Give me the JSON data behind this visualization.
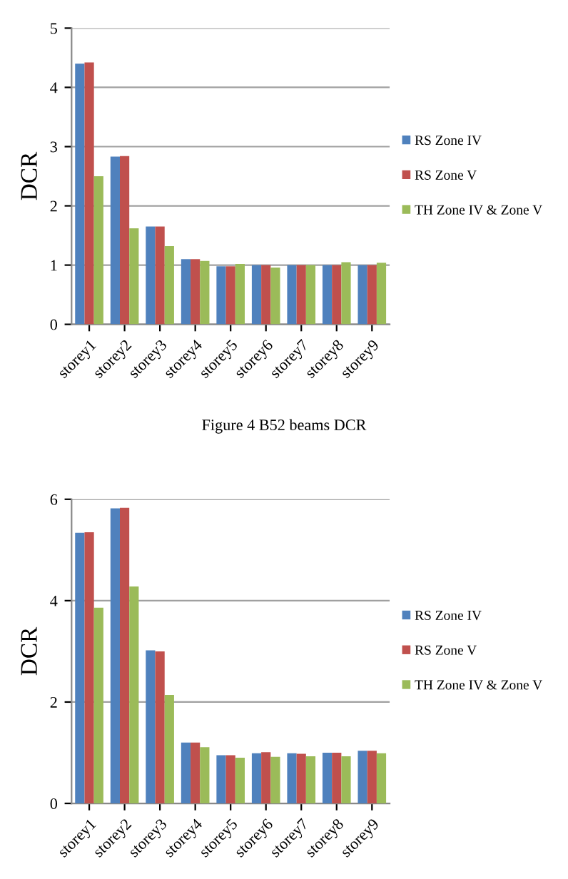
{
  "chart_data": [
    {
      "type": "bar",
      "ylabel": "DCR",
      "annotations": [
        "Figure 4 B52 beams DCR"
      ],
      "categories": [
        "storey1",
        "storey2",
        "storey3",
        "storey4",
        "storey5",
        "storey6",
        "storey7",
        "storey8",
        "storey9"
      ],
      "series": [
        {
          "name": "RS Zone IV",
          "color": "#4f81bd",
          "values": [
            4.4,
            2.83,
            1.65,
            1.1,
            0.98,
            1.0,
            1.0,
            1.0,
            1.0
          ]
        },
        {
          "name": "RS Zone V",
          "color": "#c0504d",
          "values": [
            4.42,
            2.84,
            1.65,
            1.1,
            0.98,
            1.0,
            1.0,
            1.0,
            1.0
          ]
        },
        {
          "name": "TH Zone IV & Zone V",
          "color": "#9bbb59",
          "values": [
            2.5,
            1.62,
            1.32,
            1.07,
            1.02,
            0.96,
            1.0,
            1.05,
            1.04
          ]
        }
      ],
      "ylim": [
        0,
        5
      ],
      "yticks": [
        0,
        1,
        2,
        3,
        4,
        5
      ],
      "grid": "y",
      "legend": "right"
    },
    {
      "type": "bar",
      "ylabel": "DCR",
      "categories": [
        "storey1",
        "storey2",
        "storey3",
        "storey4",
        "storey5",
        "storey6",
        "storey7",
        "storey8",
        "storey9"
      ],
      "series": [
        {
          "name": "RS Zone IV",
          "color": "#4f81bd",
          "values": [
            5.34,
            5.82,
            3.02,
            1.2,
            0.95,
            0.99,
            0.99,
            1.0,
            1.04
          ]
        },
        {
          "name": "RS Zone V",
          "color": "#c0504d",
          "values": [
            5.35,
            5.83,
            3.0,
            1.2,
            0.95,
            1.01,
            0.98,
            1.0,
            1.04
          ]
        },
        {
          "name": "TH Zone IV & Zone V",
          "color": "#9bbb59",
          "values": [
            3.86,
            4.28,
            2.14,
            1.11,
            0.9,
            0.92,
            0.93,
            0.93,
            0.99
          ]
        }
      ],
      "ylim": [
        0,
        6
      ],
      "yticks": [
        0,
        2,
        4,
        6
      ],
      "grid": "y",
      "legend": "right"
    }
  ]
}
